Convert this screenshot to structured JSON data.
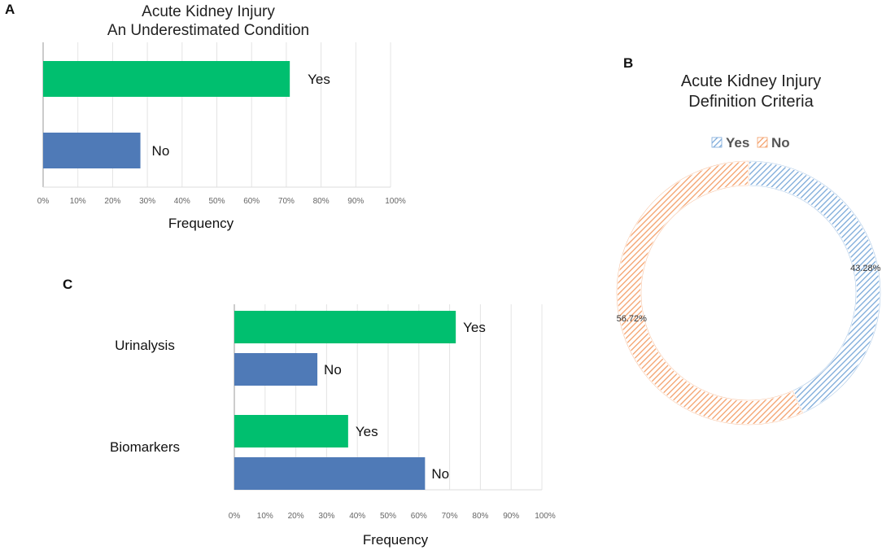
{
  "panels": {
    "a": "A",
    "b": "B",
    "c": "C"
  },
  "colors": {
    "yes_bar": "#00bf6f",
    "no_bar": "#4f7ab7",
    "donut_yes": "#7aa9d9",
    "donut_no": "#f4a06a"
  },
  "chart_data": [
    {
      "id": "A",
      "type": "bar",
      "orientation": "horizontal",
      "title": [
        "Acute Kidney Injury",
        "An Underestimated Condition"
      ],
      "categories": [
        "Yes",
        "No"
      ],
      "values": [
        71,
        28
      ],
      "xlabel": "Frequency",
      "ylabel": "",
      "xlim": [
        0,
        100
      ],
      "xticks": [
        "0%",
        "10%",
        "20%",
        "30%",
        "40%",
        "50%",
        "60%",
        "70%",
        "80%",
        "90%",
        "100%"
      ],
      "grid": true
    },
    {
      "id": "B",
      "type": "pie",
      "variant": "donut",
      "title": [
        "Acute Kidney Injury",
        "Definition Criteria"
      ],
      "legend": [
        "Yes",
        "No"
      ],
      "legend_position": "top",
      "categories": [
        "Yes",
        "No"
      ],
      "values": [
        43.28,
        56.72
      ],
      "value_labels": [
        "43.28%",
        "56.72%"
      ]
    },
    {
      "id": "C",
      "type": "bar",
      "orientation": "horizontal",
      "title": [],
      "groups": [
        "Urinalysis",
        "Biomarkers"
      ],
      "series": [
        {
          "name": "Yes",
          "values": [
            72,
            37
          ]
        },
        {
          "name": "No",
          "values": [
            27,
            62
          ]
        }
      ],
      "xlabel": "Frequency",
      "ylabel": "",
      "xlim": [
        0,
        100
      ],
      "xticks": [
        "0%",
        "10%",
        "20%",
        "30%",
        "40%",
        "50%",
        "60%",
        "70%",
        "80%",
        "90%",
        "100%"
      ],
      "grid": true
    }
  ]
}
